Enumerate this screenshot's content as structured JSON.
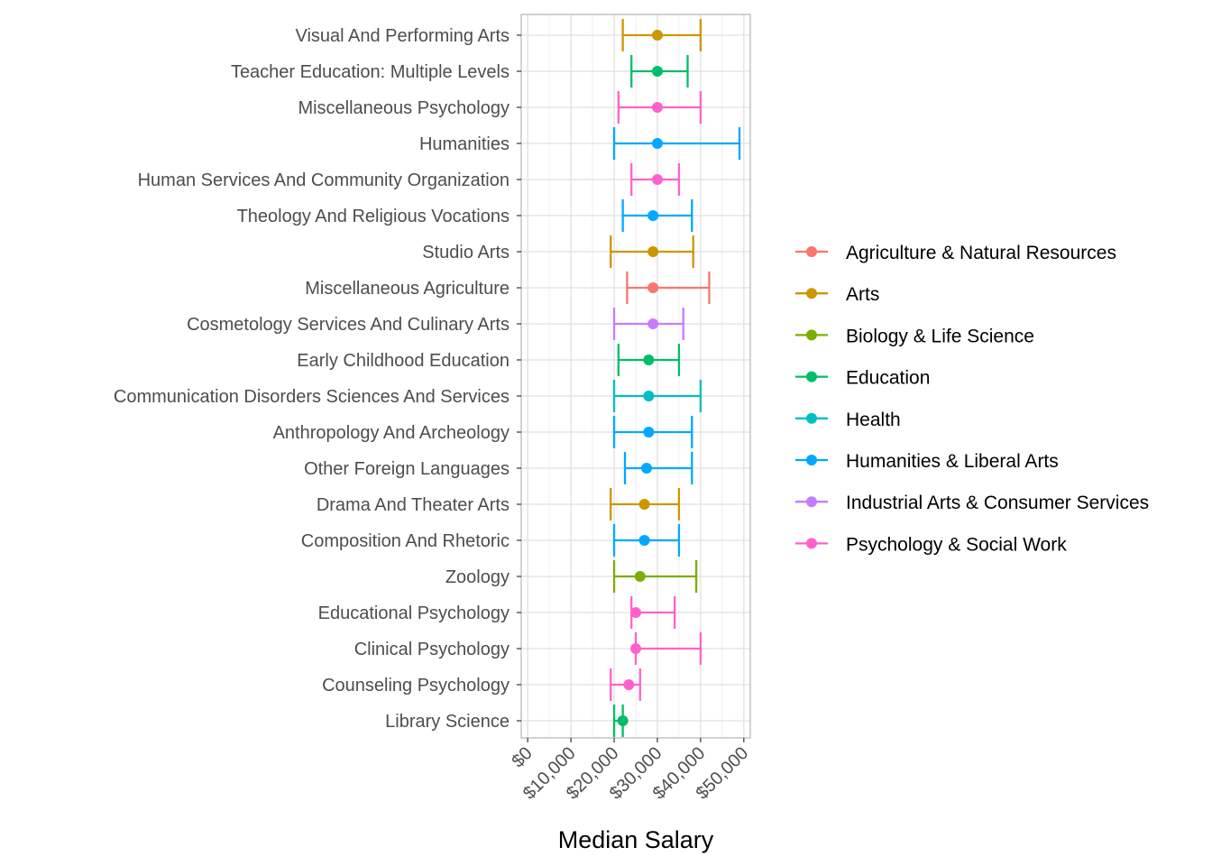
{
  "chart_data": {
    "type": "errorbar",
    "title": "",
    "xlabel": "Median Salary",
    "ylabel": "",
    "xlim": [
      -1500,
      51500
    ],
    "x_ticks": [
      0,
      10000,
      20000,
      30000,
      40000,
      50000
    ],
    "x_tick_labels": [
      "$0",
      "$10,000",
      "$20,000",
      "$30,000",
      "$40,000",
      "$50,000"
    ],
    "grid": true,
    "legend_position": "right",
    "legend": [
      {
        "name": "Agriculture & Natural Resources",
        "color": "#F8766D"
      },
      {
        "name": "Arts",
        "color": "#CD9600"
      },
      {
        "name": "Biology & Life Science",
        "color": "#7CAE00"
      },
      {
        "name": "Education",
        "color": "#00BE67"
      },
      {
        "name": "Health",
        "color": "#00BFC4"
      },
      {
        "name": "Humanities & Liberal Arts",
        "color": "#00A9FF"
      },
      {
        "name": "Industrial Arts & Consumer Services",
        "color": "#C77CFF"
      },
      {
        "name": "Psychology & Social Work",
        "color": "#FF61CC"
      }
    ],
    "categories": [
      "Visual And Performing Arts",
      "Teacher Education: Multiple Levels",
      "Miscellaneous Psychology",
      "Humanities",
      "Human Services And Community Organization",
      "Theology And Religious Vocations",
      "Studio Arts",
      "Miscellaneous Agriculture",
      "Cosmetology Services And Culinary Arts",
      "Early Childhood Education",
      "Communication Disorders Sciences And Services",
      "Anthropology And Archeology",
      "Other Foreign Languages",
      "Drama And Theater Arts",
      "Composition And Rhetoric",
      "Zoology",
      "Educational Psychology",
      "Clinical Psychology",
      "Counseling Psychology",
      "Library Science"
    ],
    "points": [
      {
        "major": "Visual And Performing Arts",
        "group": "Arts",
        "median": 30000,
        "low": 22000,
        "high": 40000
      },
      {
        "major": "Teacher Education: Multiple Levels",
        "group": "Education",
        "median": 30000,
        "low": 24000,
        "high": 37000
      },
      {
        "major": "Miscellaneous Psychology",
        "group": "Psychology & Social Work",
        "median": 30000,
        "low": 21000,
        "high": 40000
      },
      {
        "major": "Humanities",
        "group": "Humanities & Liberal Arts",
        "median": 30000,
        "low": 20000,
        "high": 49000
      },
      {
        "major": "Human Services And Community Organization",
        "group": "Psychology & Social Work",
        "median": 30000,
        "low": 24000,
        "high": 35000
      },
      {
        "major": "Theology And Religious Vocations",
        "group": "Humanities & Liberal Arts",
        "median": 29000,
        "low": 22000,
        "high": 38000
      },
      {
        "major": "Studio Arts",
        "group": "Arts",
        "median": 29000,
        "low": 19200,
        "high": 38300
      },
      {
        "major": "Miscellaneous Agriculture",
        "group": "Agriculture & Natural Resources",
        "median": 29000,
        "low": 23000,
        "high": 42000
      },
      {
        "major": "Cosmetology Services And Culinary Arts",
        "group": "Industrial Arts & Consumer Services",
        "median": 29000,
        "low": 20000,
        "high": 36000
      },
      {
        "major": "Early Childhood Education",
        "group": "Education",
        "median": 28000,
        "low": 21000,
        "high": 35000
      },
      {
        "major": "Communication Disorders Sciences And Services",
        "group": "Health",
        "median": 28000,
        "low": 20000,
        "high": 40000
      },
      {
        "major": "Anthropology And Archeology",
        "group": "Humanities & Liberal Arts",
        "median": 28000,
        "low": 20000,
        "high": 38000
      },
      {
        "major": "Other Foreign Languages",
        "group": "Humanities & Liberal Arts",
        "median": 27500,
        "low": 22500,
        "high": 38000
      },
      {
        "major": "Drama And Theater Arts",
        "group": "Arts",
        "median": 27000,
        "low": 19200,
        "high": 35000
      },
      {
        "major": "Composition And Rhetoric",
        "group": "Humanities & Liberal Arts",
        "median": 27000,
        "low": 20000,
        "high": 35000
      },
      {
        "major": "Zoology",
        "group": "Biology & Life Science",
        "median": 26000,
        "low": 20000,
        "high": 39000
      },
      {
        "major": "Educational Psychology",
        "group": "Psychology & Social Work",
        "median": 25000,
        "low": 24000,
        "high": 34000
      },
      {
        "major": "Clinical Psychology",
        "group": "Psychology & Social Work",
        "median": 25000,
        "low": 25000,
        "high": 40000
      },
      {
        "major": "Counseling Psychology",
        "group": "Psychology & Social Work",
        "median": 23400,
        "low": 19200,
        "high": 26000
      },
      {
        "major": "Library Science",
        "group": "Education",
        "median": 22000,
        "low": 20000,
        "high": 22000
      }
    ]
  }
}
